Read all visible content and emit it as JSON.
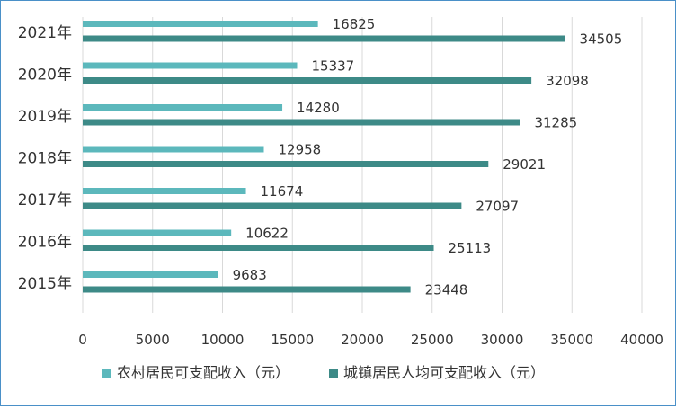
{
  "chart_data": {
    "type": "bar",
    "orientation": "horizontal",
    "categories": [
      "2021年",
      "2020年",
      "2019年",
      "2018年",
      "2017年",
      "2016年",
      "2015年"
    ],
    "series": [
      {
        "name": "农村居民可支配收入（元）",
        "color": "#5cb8bc",
        "values": [
          16825,
          15337,
          14280,
          12958,
          11674,
          10622,
          9683
        ]
      },
      {
        "name": "城镇居民人均可支配收入（元）",
        "color": "#3d8a87",
        "values": [
          34505,
          32098,
          31285,
          29021,
          27097,
          25113,
          23448
        ]
      }
    ],
    "xlim": [
      0,
      40000
    ],
    "xticks": [
      "0",
      "5000",
      "10000",
      "15000",
      "20000",
      "25000",
      "30000",
      "35000",
      "40000"
    ],
    "grid": "vertical",
    "legend_position": "bottom"
  }
}
